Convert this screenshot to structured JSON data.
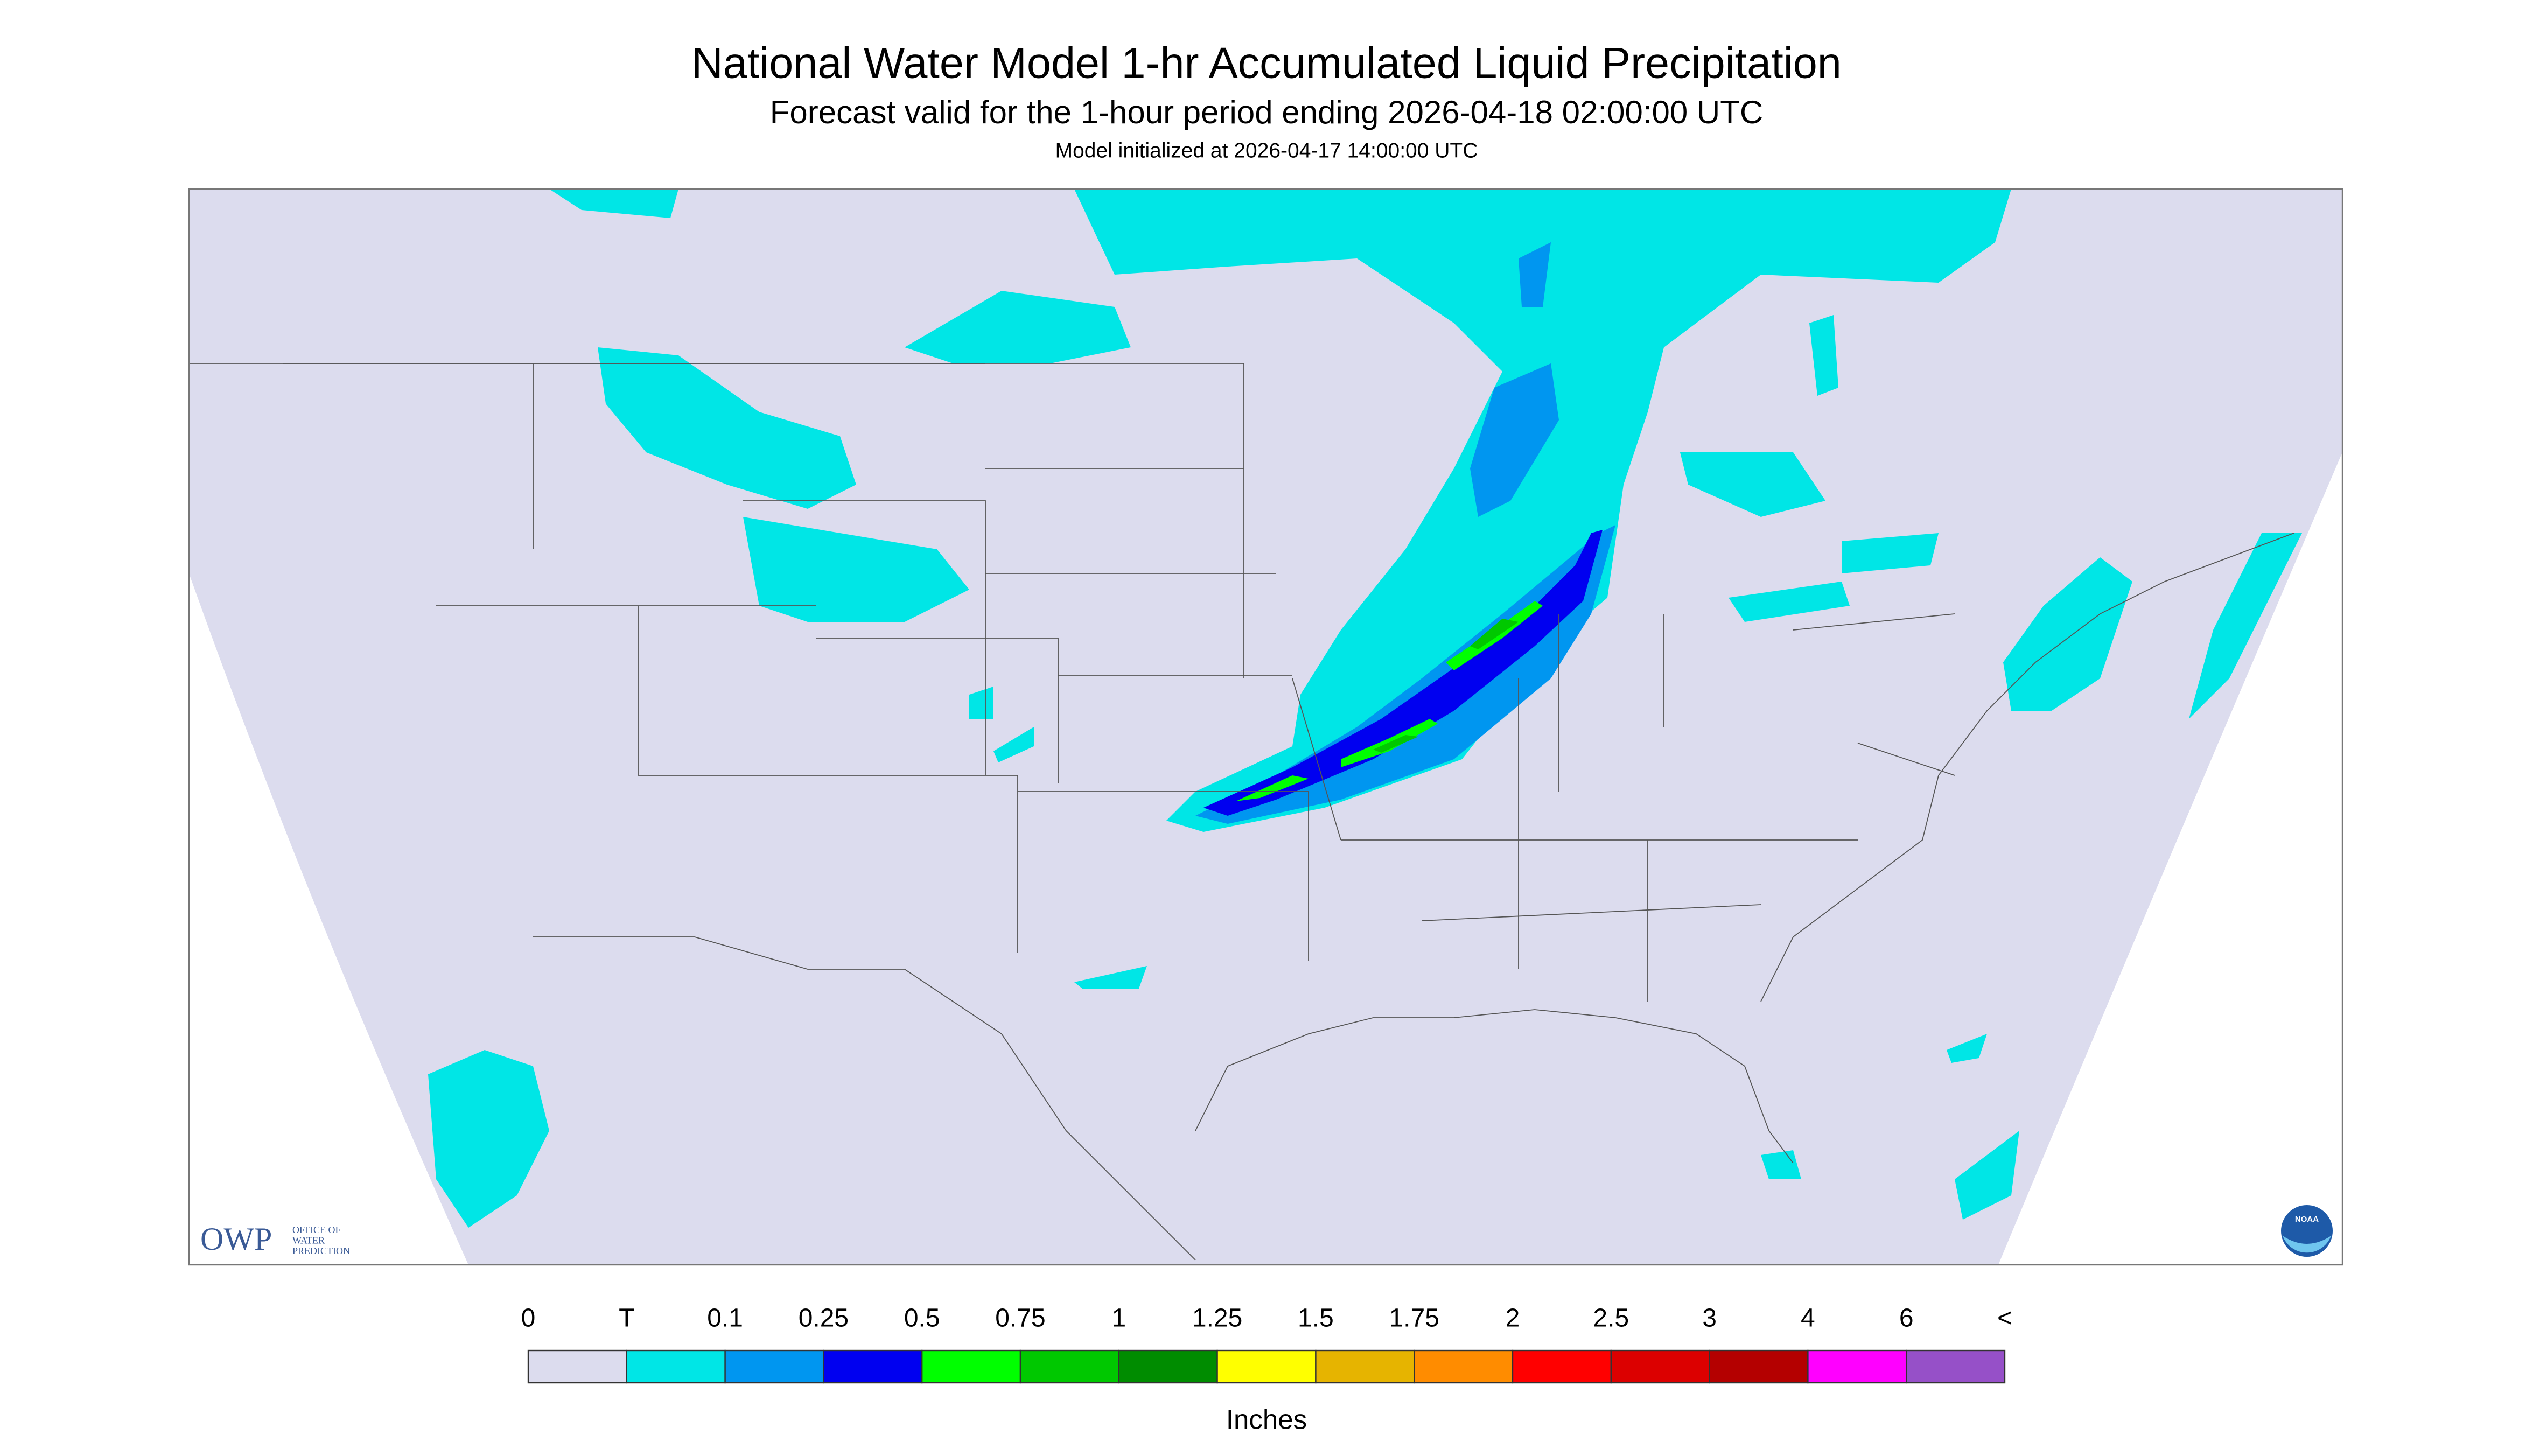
{
  "header": {
    "title": "National Water Model 1-hr Accumulated Liquid Precipitation",
    "subtitle": "Forecast valid for the 1-hour period ending 2026-04-18 02:00:00 UTC",
    "note": "Model initialized at 2026-04-17 14:00:00 UTC"
  },
  "legend": {
    "labels": [
      "0",
      "T",
      "0.1",
      "0.25",
      "0.5",
      "0.75",
      "1",
      "1.25",
      "1.5",
      "1.75",
      "2",
      "2.5",
      "3",
      "4",
      "6",
      "<"
    ],
    "colors": [
      "#dcdcee",
      "#00e6e6",
      "#0096f0",
      "#0000f0",
      "#00ff00",
      "#00c800",
      "#008c00",
      "#ffff00",
      "#e6b400",
      "#ff8c00",
      "#ff0000",
      "#dc0000",
      "#b40000",
      "#ff00ff",
      "#9650c8"
    ],
    "unit": "Inches"
  },
  "logo": {
    "agency": "OWP",
    "lines": [
      "OFFICE OF",
      "WATER",
      "PREDICTION"
    ],
    "noaa": "NOAA"
  }
}
